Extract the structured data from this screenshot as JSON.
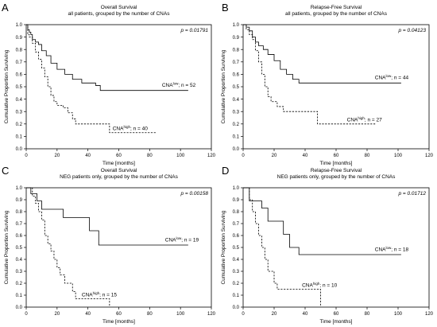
{
  "chart_data": [
    {
      "panel_label": "A",
      "type": "line",
      "title": "Overall Survival",
      "subtitle": "all patients, grouped by the number of CNAs",
      "xlabel": "Time [months]",
      "ylabel": "Cumulative Proportion Surviving",
      "xlim": [
        0,
        120
      ],
      "ylim": [
        0,
        1.0
      ],
      "xticks": [
        0,
        20,
        40,
        60,
        80,
        100,
        120
      ],
      "yticks": [
        0,
        0.1,
        0.2,
        0.3,
        0.4,
        0.5,
        0.6,
        0.7,
        0.8,
        0.9,
        1.0
      ],
      "p_value": "p = 0.01791",
      "series": [
        {
          "label_base": "CNA",
          "label_sup": "low",
          "label_tail": "; n = 52",
          "style": "solid",
          "x": [
            0,
            1,
            2,
            3,
            4,
            6,
            8,
            10,
            13,
            16,
            20,
            25,
            30,
            36,
            45,
            48,
            105
          ],
          "y": [
            1.0,
            0.96,
            0.94,
            0.92,
            0.88,
            0.86,
            0.84,
            0.79,
            0.75,
            0.69,
            0.64,
            0.6,
            0.56,
            0.53,
            0.51,
            0.47,
            0.47
          ]
        },
        {
          "label_base": "CNA",
          "label_sup": "high",
          "label_tail": "; n = 40",
          "style": "dashed",
          "x": [
            0,
            1,
            2,
            4,
            6,
            8,
            10,
            12,
            14,
            16,
            18,
            20,
            24,
            27,
            30,
            32,
            52,
            54,
            84
          ],
          "y": [
            1.0,
            0.92,
            0.9,
            0.85,
            0.78,
            0.72,
            0.65,
            0.58,
            0.5,
            0.43,
            0.38,
            0.35,
            0.33,
            0.29,
            0.24,
            0.2,
            0.2,
            0.13,
            0.13
          ]
        }
      ]
    },
    {
      "panel_label": "B",
      "type": "line",
      "title": "Relapse-Free Survival",
      "subtitle": "all patients, grouped by the number of CNAs",
      "xlabel": "Time [months]",
      "ylabel": "Cumulative Proportion Surviving",
      "xlim": [
        0,
        120
      ],
      "ylim": [
        0,
        1.0
      ],
      "xticks": [
        0,
        20,
        40,
        60,
        80,
        100,
        120
      ],
      "yticks": [
        0,
        0.1,
        0.2,
        0.3,
        0.4,
        0.5,
        0.6,
        0.7,
        0.8,
        0.9,
        1.0
      ],
      "p_value": "p = 0.04123",
      "series": [
        {
          "label_base": "CNA",
          "label_sup": "low",
          "label_tail": "; n = 44",
          "style": "solid",
          "x": [
            0,
            2,
            4,
            6,
            8,
            10,
            13,
            16,
            20,
            24,
            28,
            32,
            36,
            102
          ],
          "y": [
            1.0,
            0.98,
            0.95,
            0.9,
            0.86,
            0.83,
            0.8,
            0.76,
            0.71,
            0.64,
            0.6,
            0.56,
            0.53,
            0.53
          ]
        },
        {
          "label_base": "CNA",
          "label_sup": "high",
          "label_tail": "; n = 27",
          "style": "dashed",
          "x": [
            0,
            2,
            4,
            6,
            8,
            10,
            12,
            14,
            16,
            18,
            22,
            26,
            35,
            48,
            86
          ],
          "y": [
            1.0,
            0.96,
            0.92,
            0.88,
            0.79,
            0.7,
            0.6,
            0.5,
            0.42,
            0.38,
            0.34,
            0.3,
            0.3,
            0.2,
            0.2
          ]
        }
      ]
    },
    {
      "panel_label": "C",
      "type": "line",
      "title": "Overall Survival",
      "subtitle": "NEG patients only, grouped by the number of CNAs",
      "xlabel": "Time [months]",
      "ylabel": "Cumulative Proportion Surviving",
      "xlim": [
        0,
        120
      ],
      "ylim": [
        0,
        1.0
      ],
      "xticks": [
        0,
        20,
        40,
        60,
        80,
        100,
        120
      ],
      "yticks": [
        0,
        0.1,
        0.2,
        0.3,
        0.4,
        0.5,
        0.6,
        0.7,
        0.8,
        0.9,
        1.0
      ],
      "p_value": "p = 0.00158",
      "series": [
        {
          "label_base": "CNA",
          "label_sup": "low",
          "label_tail": "; n = 19",
          "style": "solid",
          "x": [
            0,
            3,
            7,
            10,
            24,
            41,
            47,
            105
          ],
          "y": [
            1.0,
            0.95,
            0.89,
            0.82,
            0.75,
            0.64,
            0.52,
            0.52
          ]
        },
        {
          "label_base": "CNA",
          "label_sup": "high",
          "label_tail": "; n = 15",
          "style": "dashed",
          "x": [
            0,
            4,
            6,
            8,
            10,
            12,
            14,
            16,
            18,
            20,
            22,
            25,
            30,
            32,
            40,
            52,
            54
          ],
          "y": [
            1.0,
            0.93,
            0.87,
            0.8,
            0.73,
            0.6,
            0.53,
            0.47,
            0.4,
            0.33,
            0.27,
            0.2,
            0.13,
            0.07,
            0.07,
            0.07,
            0.0
          ]
        }
      ]
    },
    {
      "panel_label": "D",
      "type": "line",
      "title": "Relapse-Free Survival",
      "subtitle": "NEG patients only, grouped by the number of CNAs",
      "xlabel": "Time [months]",
      "ylabel": "Cumulative Proportion Surviving",
      "xlim": [
        0,
        120
      ],
      "ylim": [
        0,
        1.0
      ],
      "xticks": [
        0,
        20,
        40,
        60,
        80,
        100,
        120
      ],
      "yticks": [
        0,
        0.1,
        0.2,
        0.3,
        0.4,
        0.5,
        0.6,
        0.7,
        0.8,
        0.9,
        1.0
      ],
      "p_value": "p = 0.01712",
      "series": [
        {
          "label_base": "CNA",
          "label_sup": "low",
          "label_tail": "; n = 18",
          "style": "solid",
          "x": [
            0,
            4,
            12,
            16,
            26,
            30,
            36,
            102
          ],
          "y": [
            1.0,
            0.89,
            0.83,
            0.72,
            0.61,
            0.5,
            0.44,
            0.44
          ]
        },
        {
          "label_base": "CNA",
          "label_sup": "high",
          "label_tail": "; n = 10",
          "style": "dashed",
          "x": [
            0,
            4,
            6,
            8,
            10,
            12,
            14,
            16,
            20,
            22,
            30,
            48,
            50
          ],
          "y": [
            1.0,
            0.9,
            0.8,
            0.7,
            0.6,
            0.5,
            0.4,
            0.3,
            0.2,
            0.15,
            0.15,
            0.15,
            0.0
          ]
        }
      ]
    }
  ]
}
